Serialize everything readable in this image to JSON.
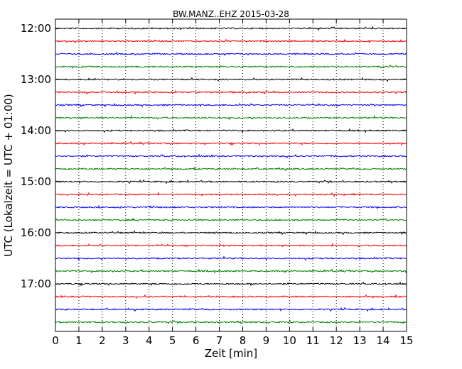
{
  "chart_data": {
    "type": "line",
    "title": "BW.MANZ..EHZ 2015-03-28",
    "xlabel": "Zeit  [min]",
    "ylabel": "UTC (Lokalzeit = UTC + 01:00)",
    "xlim": [
      0,
      15
    ],
    "x_ticks": [
      "0",
      "1",
      "2",
      "3",
      "4",
      "5",
      "6",
      "7",
      "8",
      "9",
      "10",
      "11",
      "12",
      "13",
      "14",
      "15"
    ],
    "y_ticks": [
      "12:00",
      "13:00",
      "14:00",
      "15:00",
      "16:00",
      "17:00"
    ],
    "grid": "vertical dotted",
    "trace_colors": [
      "#000000",
      "#ff0000",
      "#0000ff",
      "#008000"
    ],
    "series": [
      {
        "start": "12:00"
      },
      {
        "start": "12:15"
      },
      {
        "start": "12:30"
      },
      {
        "start": "12:45"
      },
      {
        "start": "13:00"
      },
      {
        "start": "13:15"
      },
      {
        "start": "13:30"
      },
      {
        "start": "13:45"
      },
      {
        "start": "14:00"
      },
      {
        "start": "14:15"
      },
      {
        "start": "14:30"
      },
      {
        "start": "14:45"
      },
      {
        "start": "15:00"
      },
      {
        "start": "15:15"
      },
      {
        "start": "15:30"
      },
      {
        "start": "15:45"
      },
      {
        "start": "16:00"
      },
      {
        "start": "16:15"
      },
      {
        "start": "16:30"
      },
      {
        "start": "16:45"
      },
      {
        "start": "17:00"
      },
      {
        "start": "17:15"
      },
      {
        "start": "17:30"
      },
      {
        "start": "17:45"
      }
    ]
  }
}
